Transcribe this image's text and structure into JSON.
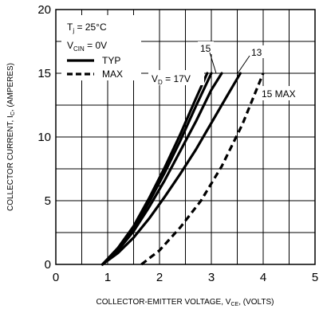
{
  "chart_data": {
    "type": "line",
    "xlabel": {
      "main": "COLLECTOR-EMITTER VOLTAGE, V",
      "sub": "CE",
      "tail": ", (VOLTS)"
    },
    "ylabel": {
      "main": "COLLECTOR CURRENT, I",
      "sub": "C",
      "tail": ", (AMPERES)"
    },
    "xlim": [
      0,
      5
    ],
    "ylim": [
      0,
      20
    ],
    "x_ticks": [
      0,
      1,
      2,
      3,
      4,
      5
    ],
    "y_ticks": [
      0,
      5,
      10,
      15,
      20
    ],
    "grid": true,
    "conditions": {
      "tj": {
        "prefix": "T",
        "sub": "j",
        "text": " = 25°C"
      },
      "vcin": {
        "prefix": "V",
        "sub": "CIN",
        "text": " = 0V"
      }
    },
    "legend": {
      "placement": "top-left",
      "entries": [
        {
          "label": "TYP",
          "style": "solid"
        },
        {
          "label": "MAX",
          "style": "dashed"
        }
      ]
    },
    "annotations": {
      "vd17": {
        "prefix": "V",
        "sub": "D",
        "text": " = 17V"
      },
      "l15": "15",
      "l13": "13",
      "l15max": "15 MAX"
    },
    "series": [
      {
        "style": "solid",
        "x": [
          0.9,
          1.2,
          1.5,
          1.8,
          2.1,
          2.4,
          2.7,
          2.92
        ],
        "y": [
          0,
          1.3,
          3.0,
          5.2,
          7.6,
          10.2,
          13.0,
          15.0
        ]
      },
      {
        "style": "solid",
        "x": [
          0.9,
          1.2,
          1.5,
          1.8,
          2.1,
          2.4,
          2.7,
          3.0
        ],
        "y": [
          0,
          1.2,
          2.8,
          4.9,
          7.2,
          9.7,
          12.4,
          15.0
        ]
      },
      {
        "style": "solid",
        "x": [
          0.9,
          1.2,
          1.5,
          1.8,
          2.1,
          2.4,
          2.7,
          3.0,
          3.2
        ],
        "y": [
          0,
          1.1,
          2.6,
          4.5,
          6.6,
          8.9,
          11.2,
          13.7,
          15.0
        ]
      },
      {
        "style": "solid",
        "x": [
          0.9,
          1.2,
          1.5,
          1.8,
          2.1,
          2.4,
          2.7,
          3.0,
          3.3,
          3.56
        ],
        "y": [
          0,
          0.9,
          2.1,
          3.6,
          5.3,
          7.1,
          9.0,
          11.1,
          13.2,
          15.0
        ]
      },
      {
        "style": "dashed",
        "x": [
          1.65,
          2.0,
          2.4,
          2.8,
          3.2,
          3.6,
          4.0
        ],
        "y": [
          0,
          1.1,
          2.9,
          5.0,
          7.7,
          11.0,
          15.0
        ]
      }
    ]
  }
}
